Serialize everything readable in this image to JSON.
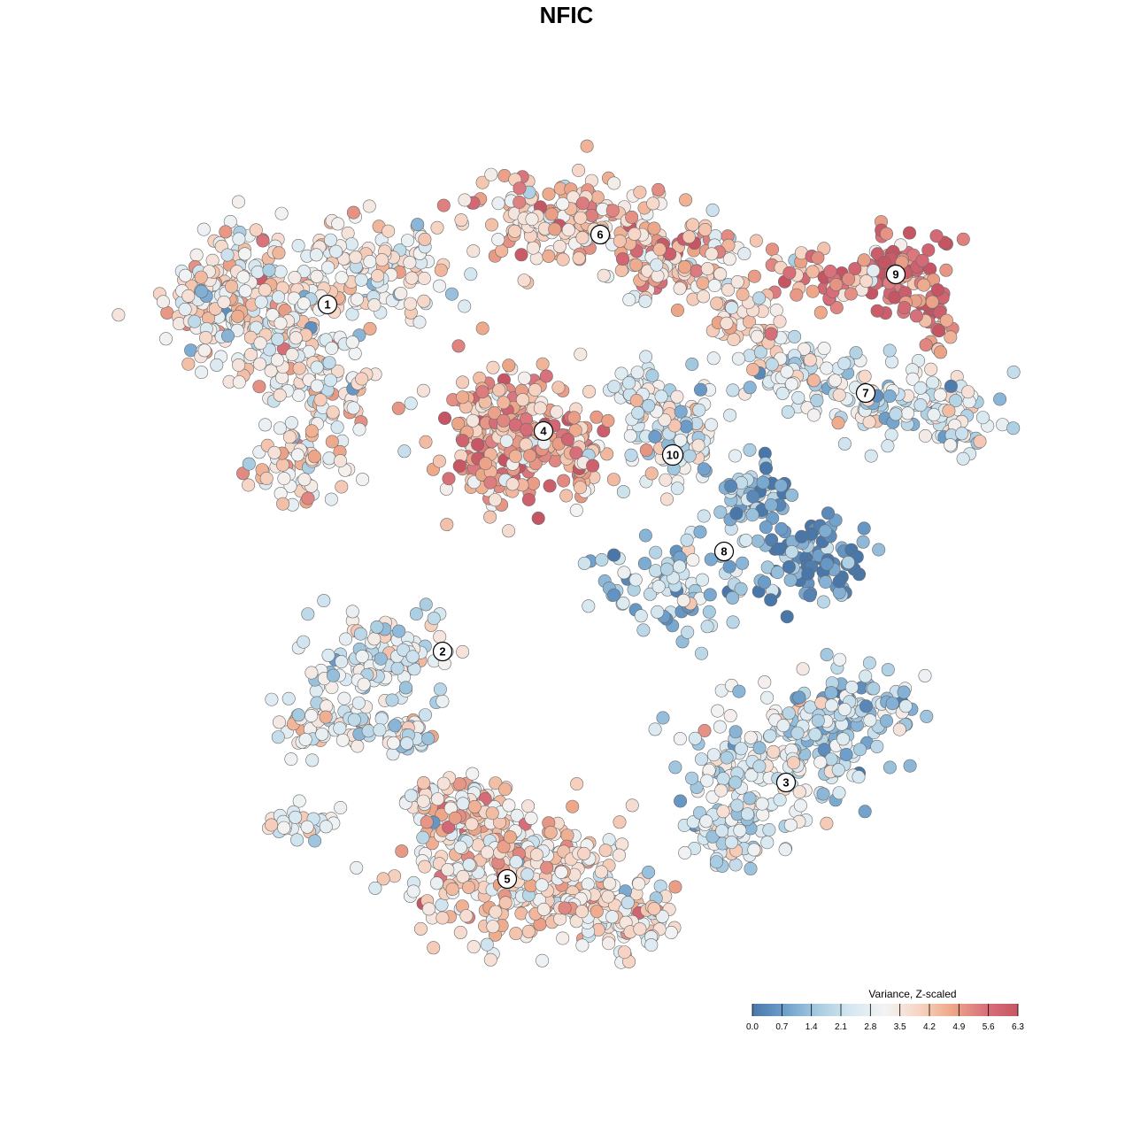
{
  "chart_data": {
    "type": "scatter",
    "title": "NFIC",
    "embedding": "2D cell embedding (t-SNE style)",
    "color_scale": {
      "title": "Variance, Z-scaled",
      "min": 0.0,
      "max": 6.3,
      "ticks": [
        "0.0",
        "0.7",
        "1.4",
        "2.1",
        "2.8",
        "3.5",
        "4.2",
        "4.9",
        "5.6",
        "6.3"
      ],
      "colors": [
        "#4a77aa",
        "#6fa0cc",
        "#a9cde2",
        "#d7e8f1",
        "#f3f3f3",
        "#f7d5c5",
        "#eea889",
        "#d9727c",
        "#c65563"
      ]
    },
    "clusters": [
      {
        "label": "1",
        "mean_value": 3.4
      },
      {
        "label": "2",
        "mean_value": 2.7
      },
      {
        "label": "3",
        "mean_value": 2.6
      },
      {
        "label": "4",
        "mean_value": 4.6
      },
      {
        "label": "5",
        "mean_value": 3.6
      },
      {
        "label": "6",
        "mean_value": 4.1
      },
      {
        "label": "7",
        "mean_value": 2.5
      },
      {
        "label": "8",
        "mean_value": 1.8
      },
      {
        "label": "9",
        "mean_value": 4.8
      },
      {
        "label": "10",
        "mean_value": 2.7
      }
    ],
    "grid": false,
    "legend_position": "bottom-right"
  }
}
